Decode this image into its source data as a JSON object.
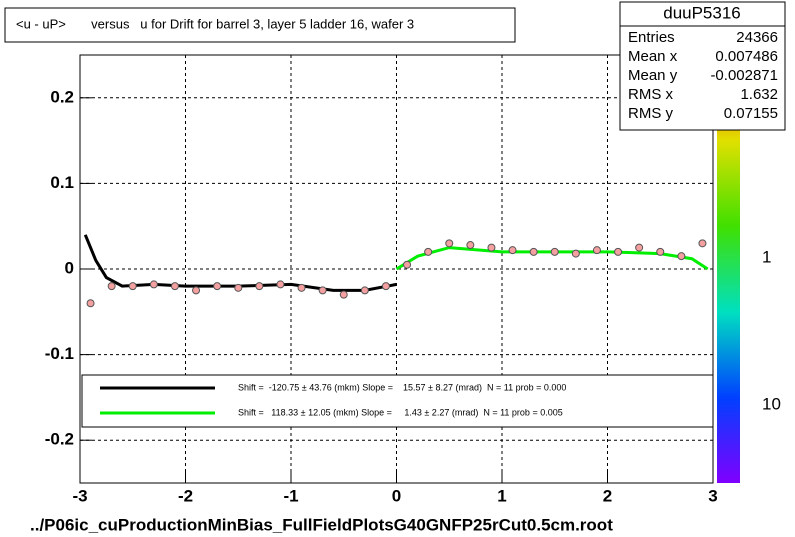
{
  "title": "<u - uP>       versus   u for Drift for barrel 3, layer 5 ladder 16, wafer 3",
  "footer": "../P06ic_cuProductionMinBias_FullFieldPlotsG40GNFP25rCut0.5cm.root",
  "stats": {
    "name": "duuP5316",
    "rows": [
      [
        "Entries",
        "24366"
      ],
      [
        "Mean x",
        "0.007486"
      ],
      [
        "Mean y",
        "-0.002871"
      ],
      [
        "RMS x",
        "1.632"
      ],
      [
        "RMS y",
        "0.07155"
      ]
    ]
  },
  "palette_labels": [
    "1",
    "10"
  ],
  "chart_data": {
    "type": "profile",
    "xlim": [
      -3,
      3
    ],
    "ylim": [
      -0.25,
      0.25
    ],
    "xticks": [
      -3,
      -2,
      -1,
      0,
      1,
      2,
      3
    ],
    "yticks": [
      -0.2,
      -0.1,
      0,
      0.1,
      0.2
    ],
    "grid": true,
    "x": [
      -2.9,
      -2.7,
      -2.5,
      -2.3,
      -2.1,
      -1.9,
      -1.7,
      -1.5,
      -1.3,
      -1.1,
      -0.9,
      -0.7,
      -0.5,
      -0.3,
      -0.1,
      0.1,
      0.3,
      0.5,
      0.7,
      0.9,
      1.1,
      1.3,
      1.5,
      1.7,
      1.9,
      2.1,
      2.3,
      2.5,
      2.7,
      2.9
    ],
    "series": [
      {
        "color": "#f4a0a0",
        "values": [
          -0.04,
          -0.02,
          -0.02,
          -0.018,
          -0.02,
          -0.025,
          -0.02,
          -0.022,
          -0.02,
          -0.018,
          -0.022,
          -0.025,
          -0.03,
          -0.025,
          -0.02,
          0.005,
          0.02,
          0.03,
          0.028,
          0.025,
          0.022,
          0.02,
          0.02,
          0.018,
          0.022,
          0.02,
          0.025,
          0.02,
          0.015,
          0.03
        ]
      }
    ],
    "fits": [
      {
        "color": "#000000",
        "label": "Shift =  -120.75 ± 43.76 (mkm) Slope =    15.57 ± 8.27 (mrad)  N = 11 prob = 0.000",
        "x": [
          -2.95,
          -2.85,
          -2.75,
          -2.6,
          -2.3,
          -2.0,
          -1.5,
          -1.0,
          -0.6,
          -0.3,
          0.0
        ],
        "values": [
          0.04,
          0.01,
          -0.01,
          -0.02,
          -0.018,
          -0.02,
          -0.02,
          -0.018,
          -0.025,
          -0.025,
          -0.018
        ]
      },
      {
        "color": "#00ee00",
        "label": "Shift =   118.33 ± 12.05 (mkm) Slope =     1.43 ± 2.27 (mrad)  N = 11 prob = 0.005",
        "x": [
          0.0,
          0.2,
          0.5,
          1.0,
          1.5,
          2.0,
          2.5,
          2.8,
          2.95
        ],
        "values": [
          0.0,
          0.015,
          0.025,
          0.02,
          0.02,
          0.02,
          0.018,
          0.012,
          0.0
        ]
      }
    ]
  }
}
